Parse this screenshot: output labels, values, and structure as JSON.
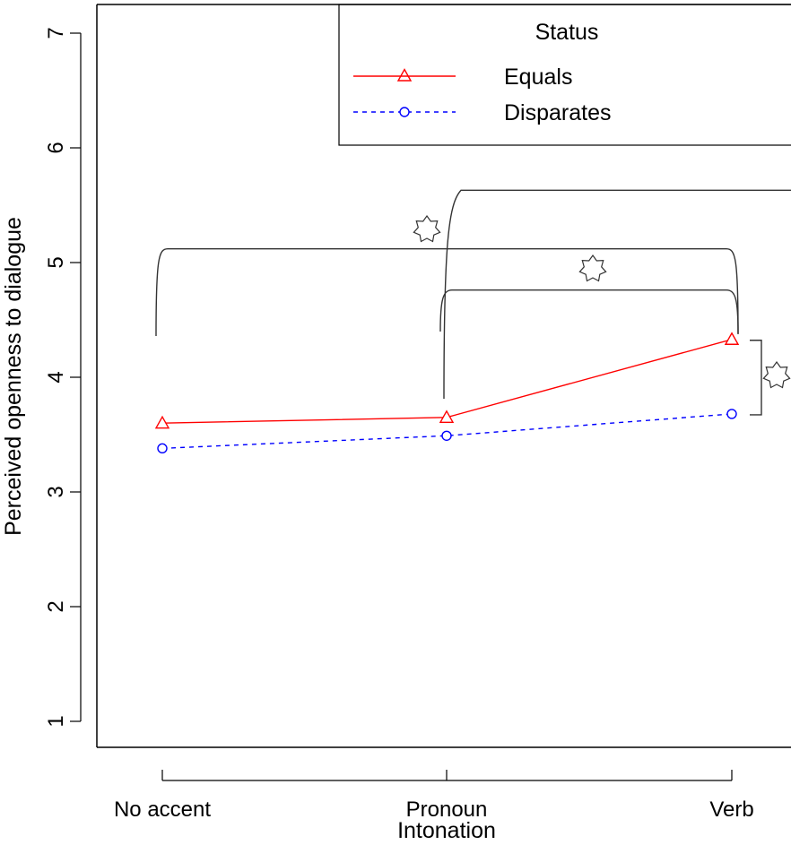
{
  "chart_data": {
    "type": "line",
    "xlabel": "Intonation",
    "ylabel": "Perceived openness to dialogue",
    "categories": [
      "No accent",
      "Pronoun",
      "Verb"
    ],
    "ylim": [
      0.77,
      7.3
    ],
    "yticks": [
      1,
      2,
      3,
      4,
      5,
      6,
      7
    ],
    "grid": false,
    "legend": {
      "title": "Status",
      "position": "top-right",
      "entries": [
        "Equals",
        "Disparates"
      ]
    },
    "series": [
      {
        "name": "Equals",
        "values": [
          3.6,
          3.65,
          4.33
        ],
        "color": "#ff0000",
        "marker": "triangle",
        "line": "solid"
      },
      {
        "name": "Disparates",
        "values": [
          3.38,
          3.49,
          3.68
        ],
        "color": "#0000ff",
        "marker": "circle",
        "line": "dashed"
      }
    ],
    "annotations": {
      "symbol": "seven-point-star",
      "brackets": [
        {
          "from": "No accent",
          "to": "Verb",
          "level": 5.12,
          "marker": "significance star"
        },
        {
          "from": "Pronoun",
          "to": "Verb",
          "level": 4.76,
          "marker": "significance star"
        },
        {
          "from": "Pronoun",
          "to": "beyond Verb",
          "level": 5.63,
          "marker": ""
        },
        {
          "from": "Equals at Verb",
          "to": "Disparates at Verb",
          "level": null,
          "marker": "significance star"
        }
      ]
    }
  },
  "colors": {
    "equals": "#ff0000",
    "disparates": "#0000ff",
    "annotation": "#333333"
  }
}
